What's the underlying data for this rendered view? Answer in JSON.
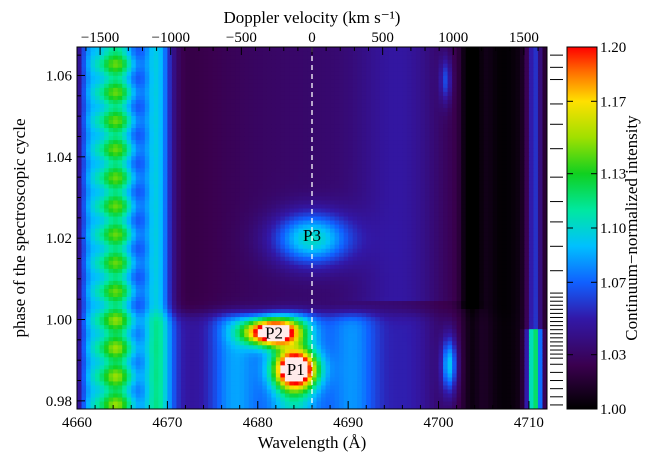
{
  "chart_data": {
    "type": "heatmap",
    "title": "",
    "xlabel": "Wavelength (Å)",
    "ylabel": "phase of the spectroscopic cycle",
    "top_axis_label": "Doppler velocity (km s⁻¹)",
    "colorbar_label": "Continuum−normalized intensity",
    "xlim": [
      4660,
      4712
    ],
    "ylim": [
      0.978,
      1.067
    ],
    "x_ticks": [
      {
        "value": 4660,
        "label": "4660"
      },
      {
        "value": 4670,
        "label": "4670"
      },
      {
        "value": 4680,
        "label": "4680"
      },
      {
        "value": 4690,
        "label": "4690"
      },
      {
        "value": 4700,
        "label": "4700"
      },
      {
        "value": 4710,
        "label": "4710"
      }
    ],
    "y_ticks": [
      {
        "value": 0.98,
        "label": "0.98"
      },
      {
        "value": 1.0,
        "label": "1.00"
      },
      {
        "value": 1.02,
        "label": "1.02"
      },
      {
        "value": 1.04,
        "label": "1.04"
      },
      {
        "value": 1.06,
        "label": "1.06"
      }
    ],
    "top_ticks": [
      {
        "value": -1500,
        "label": "−1500"
      },
      {
        "value": -1000,
        "label": "−1000"
      },
      {
        "value": -500,
        "label": "−500"
      },
      {
        "value": 0,
        "label": "0"
      },
      {
        "value": 500,
        "label": "500"
      },
      {
        "value": 1000,
        "label": "1000"
      },
      {
        "value": 1500,
        "label": "1500"
      }
    ],
    "rest_wavelength": 4686,
    "colorbar": {
      "min": 1.0,
      "max": 1.2,
      "ticks": [
        {
          "value": 1.0,
          "label": "1.00"
        },
        {
          "value": 1.03,
          "label": "1.03"
        },
        {
          "value": 1.07,
          "label": "1.07"
        },
        {
          "value": 1.1,
          "label": "1.10"
        },
        {
          "value": 1.13,
          "label": "1.13"
        },
        {
          "value": 1.17,
          "label": "1.17"
        },
        {
          "value": 1.2,
          "label": "1.20"
        }
      ]
    },
    "annotations": [
      {
        "text": "P1",
        "x": 4684.2,
        "y": 0.9878
      },
      {
        "text": "P2",
        "x": 4681.8,
        "y": 0.9968
      },
      {
        "text": "P3",
        "x": 4686.0,
        "y": 1.0208
      }
    ],
    "observed_phases": [
      0.979,
      0.981,
      0.983,
      0.985,
      0.987,
      0.989,
      0.9905,
      0.9915,
      0.9925,
      0.9935,
      0.9945,
      0.9955,
      0.9965,
      0.9975,
      0.9985,
      0.9995,
      1.0005,
      1.0015,
      1.0025,
      1.0035,
      1.0045,
      1.0055,
      1.0065,
      1.012,
      1.018,
      1.024,
      1.029,
      1.035,
      1.042,
      1.048,
      1.053,
      1.059,
      1.062,
      1.065
    ],
    "features": [
      {
        "name": "P1",
        "x": 4684.2,
        "y": 0.9878,
        "sx": 1.6,
        "sy": 0.0032,
        "amp": 0.175
      },
      {
        "name": "P2",
        "x": 4681.5,
        "y": 0.997,
        "sx": 2.0,
        "sy": 0.0022,
        "amp": 0.185
      },
      {
        "name": "P3",
        "x": 4686.0,
        "y": 1.02,
        "sx": 3.0,
        "sy": 0.0045,
        "amp": 0.07
      }
    ]
  }
}
